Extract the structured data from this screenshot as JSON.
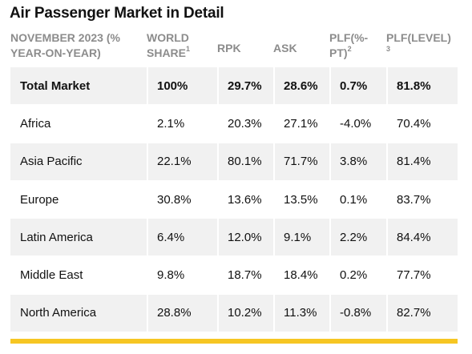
{
  "title": "Air Passenger Market in Detail",
  "headers": {
    "col0": "NOVEMBER 2023 (% YEAR-ON-YEAR)",
    "col1": "WORLD SHARE",
    "col1_sup": "1",
    "col2": "RPK",
    "col3": "ASK",
    "col4": "PLF(%-PT)",
    "col4_sup": "2",
    "col5": "PLF(LEVEL)",
    "col5_sup": "3"
  },
  "rows": [
    {
      "region": "Total Market",
      "world_share": "100%",
      "rpk": "29.7%",
      "ask": "28.6%",
      "plf_pt": "0.7%",
      "plf_level": "81.8%"
    },
    {
      "region": "Africa",
      "world_share": "2.1%",
      "rpk": "20.3%",
      "ask": "27.1%",
      "plf_pt": "-4.0%",
      "plf_level": "70.4%"
    },
    {
      "region": "Asia Pacific",
      "world_share": "22.1%",
      "rpk": "80.1%",
      "ask": "71.7%",
      "plf_pt": "3.8%",
      "plf_level": "81.4%"
    },
    {
      "region": "Europe",
      "world_share": "30.8%",
      "rpk": "13.6%",
      "ask": "13.5%",
      "plf_pt": "0.1%",
      "plf_level": "83.7%"
    },
    {
      "region": "Latin America",
      "world_share": "6.4%",
      "rpk": "12.0%",
      "ask": "9.1%",
      "plf_pt": "2.2%",
      "plf_level": "84.4%"
    },
    {
      "region": "Middle East",
      "world_share": "9.8%",
      "rpk": "18.7%",
      "ask": "18.4%",
      "plf_pt": "0.2%",
      "plf_level": "77.7%"
    },
    {
      "region": "North America",
      "world_share": "28.8%",
      "rpk": "10.2%",
      "ask": "11.3%",
      "plf_pt": "-0.8%",
      "plf_level": "82.7%"
    }
  ],
  "colors": {
    "accent_bar": "#f6c623",
    "header_text": "#8c8c8c",
    "row_shade": "#f1f1f1"
  }
}
